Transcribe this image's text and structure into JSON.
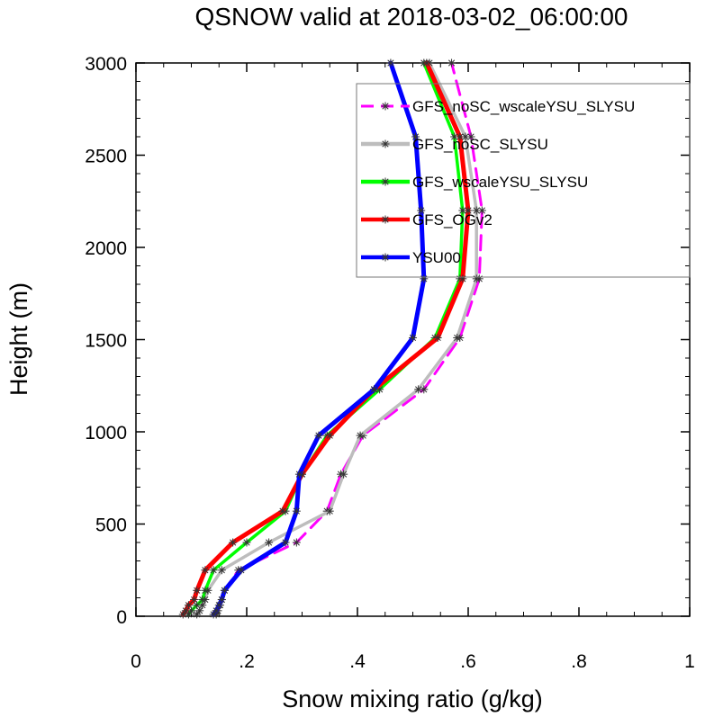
{
  "chart_data": {
    "type": "line",
    "title": "QSNOW valid at 2018-03-02_06:00:00",
    "xlabel": "Snow mixing ratio (g/kg)",
    "ylabel": "Height (m)",
    "xlim": [
      0,
      1
    ],
    "ylim": [
      0,
      3000
    ],
    "x_ticks": [
      0,
      0.2,
      0.4,
      0.6,
      0.8,
      1
    ],
    "x_tick_labels": [
      "0",
      ".2",
      ".4",
      ".6",
      ".8",
      "1"
    ],
    "y_ticks": [
      0,
      500,
      1000,
      1500,
      2000,
      2500,
      3000
    ],
    "y_tick_labels": [
      "0",
      "500",
      "1000",
      "1500",
      "2000",
      "2500",
      "3000"
    ],
    "grid": false,
    "legend_position": "top-right",
    "series": [
      {
        "name": "GFS_noSC_wscaleYSU_SLYSU",
        "color": "#ff00ff",
        "dash": "dashed",
        "heights": [
          10,
          30,
          60,
          90,
          140,
          250,
          400,
          570,
          770,
          980,
          1230,
          1510,
          1830,
          2200,
          2600,
          3000
        ],
        "values": [
          0.145,
          0.148,
          0.152,
          0.155,
          0.16,
          0.185,
          0.29,
          0.345,
          0.37,
          0.41,
          0.52,
          0.585,
          0.62,
          0.625,
          0.605,
          0.57
        ]
      },
      {
        "name": "GFS_noSC_SLYSU",
        "color": "#bdbdbd",
        "dash": "solid",
        "heights": [
          10,
          30,
          60,
          90,
          140,
          250,
          400,
          570,
          770,
          980,
          1230,
          1510,
          1830,
          2200,
          2600,
          3000
        ],
        "values": [
          0.11,
          0.115,
          0.12,
          0.125,
          0.13,
          0.155,
          0.24,
          0.35,
          0.375,
          0.405,
          0.51,
          0.58,
          0.615,
          0.615,
          0.595,
          0.53
        ]
      },
      {
        "name": "GFS_wscaleYSU_SLYSU",
        "color": "#00ff00",
        "dash": "solid",
        "heights": [
          10,
          30,
          60,
          90,
          140,
          250,
          400,
          570,
          770,
          980,
          1230,
          1510,
          1830,
          2200,
          2600,
          3000
        ],
        "values": [
          0.095,
          0.1,
          0.11,
          0.12,
          0.125,
          0.14,
          0.2,
          0.27,
          0.3,
          0.345,
          0.44,
          0.54,
          0.585,
          0.59,
          0.575,
          0.52
        ]
      },
      {
        "name": "GFS_OGv2",
        "color": "#ff0000",
        "dash": "solid",
        "heights": [
          10,
          30,
          60,
          90,
          140,
          250,
          400,
          570,
          770,
          980,
          1230,
          1510,
          1830,
          2200,
          2600,
          3000
        ],
        "values": [
          0.085,
          0.09,
          0.095,
          0.105,
          0.11,
          0.125,
          0.175,
          0.265,
          0.3,
          0.35,
          0.43,
          0.545,
          0.59,
          0.6,
          0.585,
          0.525
        ]
      },
      {
        "name": "YSU00",
        "color": "#0000ff",
        "dash": "solid",
        "heights": [
          10,
          30,
          60,
          90,
          140,
          250,
          400,
          570,
          770,
          980,
          1230,
          1510,
          1830,
          2200,
          2600,
          3000
        ],
        "values": [
          0.14,
          0.145,
          0.15,
          0.155,
          0.16,
          0.19,
          0.27,
          0.29,
          0.295,
          0.33,
          0.43,
          0.5,
          0.52,
          0.515,
          0.505,
          0.46
        ]
      }
    ]
  }
}
